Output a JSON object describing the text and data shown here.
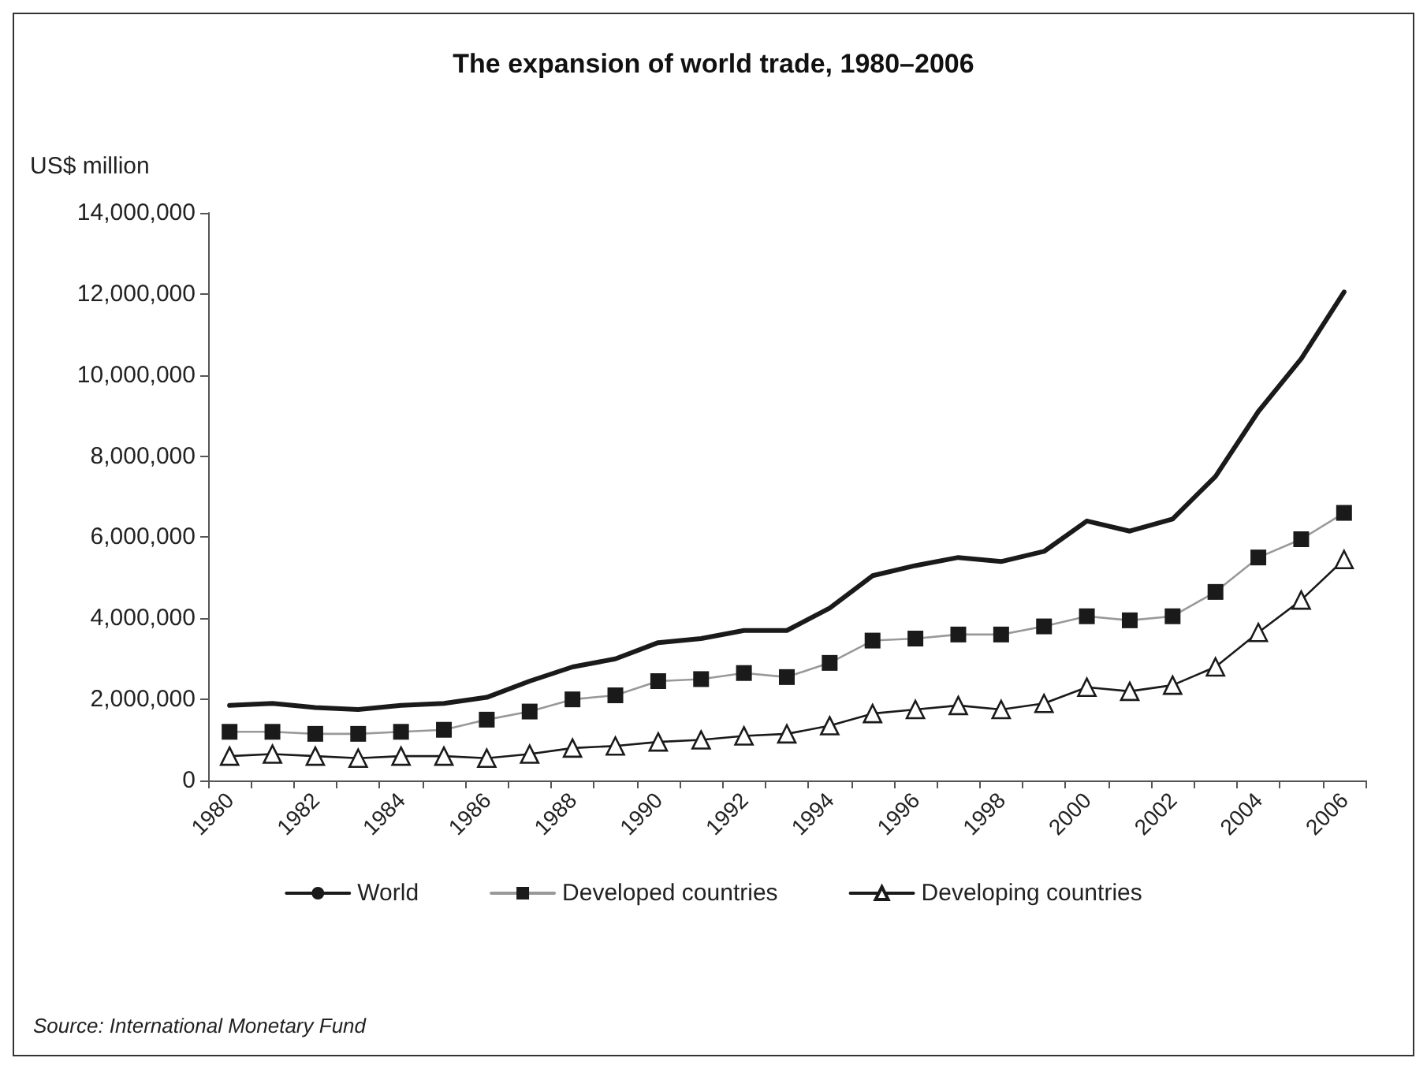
{
  "chart_data": {
    "type": "line",
    "title": "The expansion of world trade, 1980–2006",
    "ylabel": "US$ million",
    "categories": [
      "1980",
      null,
      "1982",
      null,
      "1984",
      null,
      "1986",
      null,
      "1988",
      null,
      "1990",
      null,
      "1992",
      null,
      "1994",
      null,
      "1996",
      null,
      "1998",
      null,
      "2000",
      null,
      "2002",
      null,
      "2004",
      null,
      "2006"
    ],
    "series": [
      {
        "name": "World",
        "color": "#1a1a1a",
        "marker": "none",
        "values": [
          1850000,
          1900000,
          1800000,
          1750000,
          1850000,
          1900000,
          2050000,
          2450000,
          2800000,
          3000000,
          3400000,
          3500000,
          3700000,
          3700000,
          4250000,
          5050000,
          5300000,
          5500000,
          5400000,
          5650000,
          6400000,
          6150000,
          6450000,
          7500000,
          9100000,
          10400000,
          12050000
        ]
      },
      {
        "name": "Developed countries",
        "color": "#1a1a1a",
        "marker": "square",
        "values": [
          1200000,
          1200000,
          1150000,
          1150000,
          1200000,
          1250000,
          1500000,
          1700000,
          2000000,
          2100000,
          2450000,
          2500000,
          2650000,
          2550000,
          2900000,
          3450000,
          3500000,
          3600000,
          3600000,
          3800000,
          4050000,
          3950000,
          4050000,
          4650000,
          5500000,
          5950000,
          6600000
        ]
      },
      {
        "name": "Developing countries",
        "color": "#1a1a1a",
        "marker": "triangle",
        "values": [
          600000,
          650000,
          600000,
          550000,
          600000,
          600000,
          550000,
          650000,
          800000,
          850000,
          950000,
          1000000,
          1100000,
          1150000,
          1350000,
          1650000,
          1750000,
          1850000,
          1750000,
          1900000,
          2300000,
          2200000,
          2350000,
          2800000,
          3650000,
          4450000,
          5450000
        ]
      }
    ],
    "ylim": [
      0,
      14000000
    ],
    "yticks": [
      0,
      {
        "value": 2000000,
        "label": "2,000,000"
      },
      {
        "value": 4000000,
        "label": "4,000,000"
      },
      {
        "value": 6000000,
        "label": "6,000,000"
      },
      {
        "value": 8000000,
        "label": "8,000,000"
      },
      {
        "value": 10000000,
        "label": "10,000,000"
      },
      {
        "value": 12000000,
        "label": "12,000,000"
      },
      {
        "value": 14000000,
        "label": "14,000,000"
      }
    ],
    "grid": false,
    "legend": "bottom",
    "annotations": [
      "Source: International Monetary Fund"
    ]
  }
}
